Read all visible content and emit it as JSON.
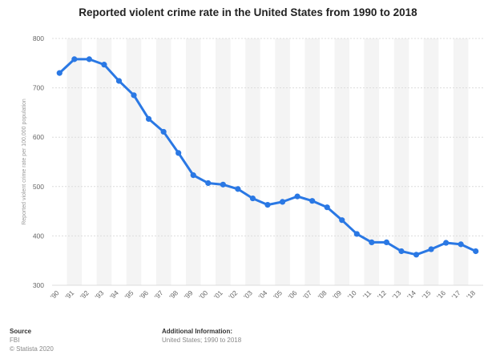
{
  "chart_data": {
    "type": "line",
    "title": "Reported violent crime rate in the United States from 1990 to 2018",
    "xlabel": "",
    "ylabel": "Reported violent crime rate per 100,000 population",
    "categories": [
      "'90",
      "'91",
      "'92",
      "'93",
      "'94",
      "'95",
      "'96",
      "'97",
      "'98",
      "'99",
      "'00",
      "'01",
      "'02",
      "'03",
      "'04",
      "'05",
      "'06",
      "'07",
      "'08",
      "'09",
      "'10",
      "'11",
      "'12",
      "'13",
      "'14",
      "'15",
      "'16",
      "'17",
      "'18"
    ],
    "series": [
      {
        "name": "Reported violent crime rate",
        "values": [
          730,
          758,
          758,
          747,
          714,
          685,
          637,
          611,
          568,
          523,
          507,
          504,
          495,
          476,
          463,
          469,
          480,
          471,
          458,
          432,
          404,
          387,
          387,
          369,
          362,
          373,
          386,
          383,
          369
        ]
      }
    ],
    "ylim": [
      300,
      800
    ],
    "yticks": [
      300,
      400,
      500,
      600,
      700,
      800
    ],
    "color": "#2a78e4",
    "grid": true
  },
  "footer": {
    "source_heading": "Source",
    "source_name": "FBI",
    "copyright": "© Statista 2020",
    "info_heading": "Additional Information:",
    "info_text": "United States; 1990 to 2018"
  }
}
